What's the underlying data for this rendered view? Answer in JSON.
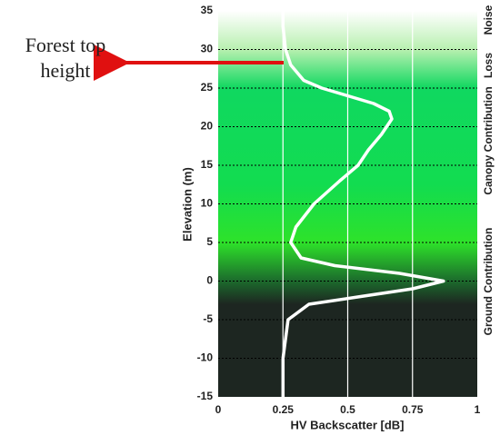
{
  "chart_data": {
    "type": "line",
    "xlabel": "HV Backscatter [dB]",
    "ylabel": "Elevation (m)",
    "annotation": "Forest top height",
    "zones": [
      "Noise",
      "Loss",
      "Canopy Contribution",
      "Ground Contribution"
    ],
    "xlim": [
      0,
      1
    ],
    "xticks": [
      0,
      0.25,
      0.5,
      0.75,
      1
    ],
    "ylim": [
      -15,
      35
    ],
    "yticks": [
      -15,
      -10,
      -5,
      0,
      5,
      10,
      15,
      20,
      25,
      30,
      35
    ],
    "color": "#ffffff",
    "y": [
      -15,
      -10,
      -5,
      -3,
      -2,
      -1,
      0,
      1,
      2,
      3,
      5,
      7,
      10,
      13,
      15,
      17,
      19,
      21,
      22,
      23,
      24,
      25,
      26,
      28,
      30,
      33,
      35
    ],
    "values": [
      0.25,
      0.25,
      0.27,
      0.35,
      0.55,
      0.75,
      0.87,
      0.7,
      0.45,
      0.32,
      0.28,
      0.3,
      0.37,
      0.47,
      0.54,
      0.58,
      0.63,
      0.67,
      0.66,
      0.6,
      0.5,
      0.4,
      0.33,
      0.28,
      0.26,
      0.25,
      0.25
    ]
  }
}
